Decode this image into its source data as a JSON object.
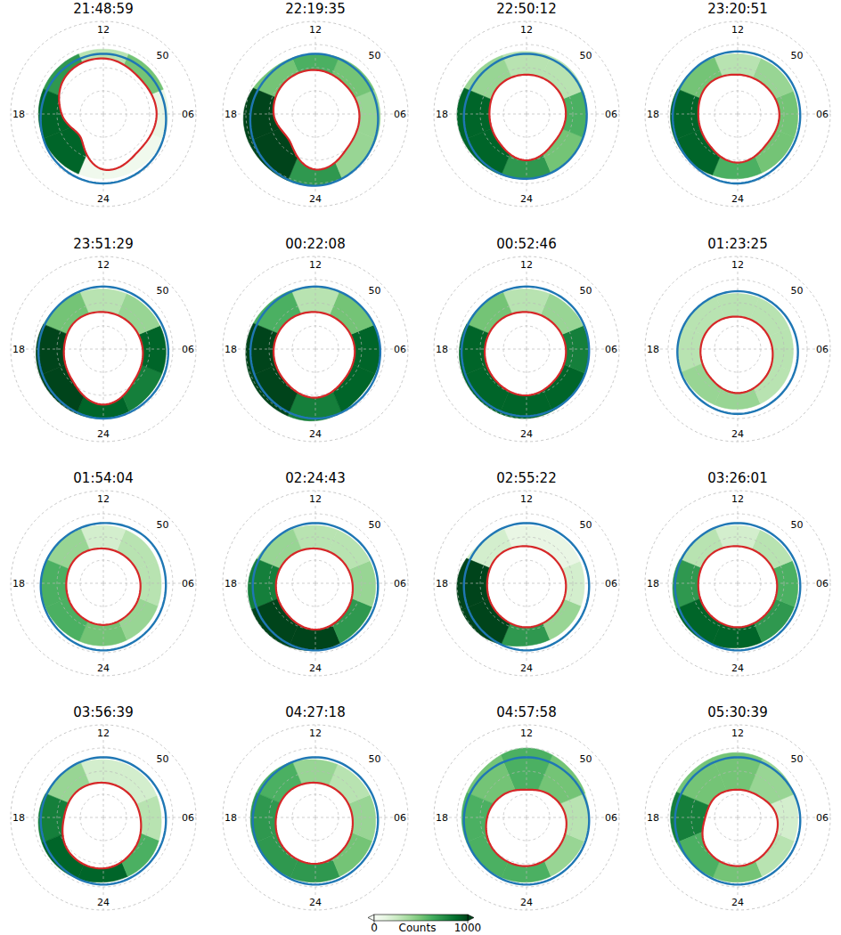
{
  "chart_data": {
    "type": "polar",
    "mlt": [
      0,
      3,
      6,
      9,
      12,
      15,
      18,
      21
    ],
    "rlim": [
      90,
      50
    ],
    "rticks": [
      50
    ],
    "grid_circles": [
      80,
      70,
      60
    ],
    "angle_ticks": [
      {
        "value": 12,
        "label": "12"
      },
      {
        "value": 18,
        "label": "18"
      },
      {
        "value": 6,
        "label": "06"
      },
      {
        "value": 24,
        "label": "24"
      }
    ],
    "colors": {
      "red_boundary": "#d62728",
      "blue_boundary": "#1f77b4"
    },
    "colorbar": {
      "range": [
        0,
        1000
      ],
      "ticks": [
        0,
        1000
      ],
      "label": "Counts"
    },
    "panels": [
      {
        "title": "21:48:59",
        "red_boundary": [
          66,
          68,
          67,
          68,
          66,
          67,
          72,
          76
        ],
        "blue_boundary": [
          60,
          61,
          63,
          64,
          64,
          64,
          63,
          61
        ],
        "oval_edge": [
          62,
          62,
          62,
          62,
          62,
          62,
          62,
          62
        ],
        "counts": [
          50,
          50,
          100,
          500,
          300,
          700,
          900,
          900
        ]
      },
      {
        "title": "22:19:35",
        "red_boundary": [
          66,
          70,
          71,
          72,
          71,
          71,
          72,
          74
        ],
        "blue_boundary": [
          59,
          61,
          63,
          64,
          64,
          64,
          62,
          60
        ],
        "oval_edge": [
          59,
          61,
          62,
          63,
          64,
          63,
          59,
          59
        ],
        "counts": [
          700,
          400,
          400,
          500,
          600,
          500,
          1000,
          1000
        ]
      },
      {
        "title": "22:50:12",
        "red_boundary": [
          70,
          73,
          73,
          73,
          73,
          73,
          74,
          73
        ],
        "blue_boundary": [
          62,
          63,
          64,
          64,
          64,
          64,
          63,
          62
        ],
        "oval_edge": [
          62,
          63,
          64,
          63,
          63,
          62,
          60,
          61
        ],
        "counts": [
          700,
          500,
          600,
          300,
          300,
          400,
          900,
          900
        ]
      },
      {
        "title": "23:20:51",
        "red_boundary": [
          69,
          72,
          72,
          73,
          73,
          72,
          73,
          72
        ],
        "blue_boundary": [
          60,
          62,
          63,
          63,
          63,
          63,
          62,
          61
        ],
        "oval_edge": [
          62,
          63,
          64,
          64,
          64,
          63,
          61,
          61
        ],
        "counts": [
          600,
          500,
          500,
          400,
          300,
          500,
          900,
          900
        ]
      },
      {
        "title": "23:51:29",
        "red_boundary": [
          66,
          71,
          73,
          74,
          74,
          73,
          73,
          71
        ],
        "blue_boundary": [
          60,
          61,
          62,
          63,
          63,
          63,
          62,
          61
        ],
        "oval_edge": [
          60,
          62,
          63,
          64,
          64,
          63,
          61,
          60
        ],
        "counts": [
          900,
          800,
          900,
          400,
          300,
          500,
          1000,
          1000
        ]
      },
      {
        "title": "00:22:08",
        "red_boundary": [
          69,
          72,
          73,
          74,
          74,
          73,
          72,
          71
        ],
        "blue_boundary": [
          60,
          61,
          62,
          63,
          63,
          63,
          62,
          61
        ],
        "oval_edge": [
          59,
          62,
          62,
          63,
          63,
          62,
          60,
          59
        ],
        "counts": [
          800,
          900,
          900,
          500,
          300,
          600,
          1000,
          1000
        ]
      },
      {
        "title": "00:52:46",
        "red_boundary": [
          70,
          72,
          73,
          74,
          74,
          73,
          72,
          71
        ],
        "blue_boundary": [
          61,
          62,
          63,
          63,
          63,
          63,
          62,
          61
        ],
        "oval_edge": [
          60,
          62,
          63,
          64,
          64,
          63,
          61,
          60
        ],
        "counts": [
          900,
          900,
          800,
          400,
          300,
          500,
          900,
          900
        ]
      },
      {
        "title": "01:23:25",
        "red_boundary": [
          71,
          73,
          75,
          76,
          76,
          75,
          74,
          73
        ],
        "blue_boundary": [
          62,
          63,
          64,
          65,
          65,
          65,
          64,
          63
        ],
        "oval_edge": [
          64,
          65,
          66,
          66,
          66,
          65,
          64,
          64
        ],
        "counts": [
          400,
          300,
          300,
          300,
          300,
          300,
          300,
          400
        ]
      },
      {
        "title": "01:54:04",
        "red_boundary": [
          72,
          73,
          74,
          75,
          75,
          74,
          74,
          73
        ],
        "blue_boundary": [
          61,
          62,
          63,
          63,
          64,
          64,
          63,
          62
        ],
        "oval_edge": [
          63,
          64,
          65,
          65,
          65,
          64,
          63,
          63
        ],
        "counts": [
          500,
          400,
          300,
          300,
          200,
          400,
          600,
          600
        ]
      },
      {
        "title": "02:24:43",
        "red_boundary": [
          70,
          72,
          74,
          75,
          75,
          74,
          73,
          72
        ],
        "blue_boundary": [
          61,
          62,
          63,
          64,
          64,
          64,
          63,
          62
        ],
        "oval_edge": [
          61,
          63,
          64,
          65,
          65,
          64,
          61,
          60
        ],
        "counts": [
          1000,
          700,
          400,
          300,
          300,
          400,
          800,
          1000
        ]
      },
      {
        "title": "02:55:22",
        "red_boundary": [
          71,
          72,
          73,
          74,
          74,
          73,
          73,
          72
        ],
        "blue_boundary": [
          61,
          62,
          63,
          64,
          64,
          64,
          63,
          62
        ],
        "oval_edge": [
          63,
          64,
          65,
          65,
          65,
          64,
          60,
          60
        ],
        "counts": [
          700,
          400,
          200,
          100,
          100,
          200,
          1000,
          1000
        ]
      },
      {
        "title": "03:26:01",
        "red_boundary": [
          71,
          72,
          73,
          74,
          74,
          73,
          73,
          72
        ],
        "blue_boundary": [
          61,
          62,
          63,
          64,
          64,
          64,
          63,
          62
        ],
        "oval_edge": [
          62,
          63,
          64,
          65,
          65,
          64,
          62,
          61
        ],
        "counts": [
          900,
          700,
          600,
          300,
          200,
          300,
          700,
          900
        ]
      },
      {
        "title": "03:56:39",
        "red_boundary": [
          68,
          71,
          74,
          75,
          75,
          74,
          73,
          69
        ],
        "blue_boundary": [
          61,
          62,
          63,
          64,
          64,
          64,
          63,
          62
        ],
        "oval_edge": [
          62,
          63,
          65,
          65,
          65,
          64,
          62,
          61
        ],
        "counts": [
          900,
          600,
          300,
          200,
          200,
          400,
          800,
          900
        ]
      },
      {
        "title": "04:27:18",
        "red_boundary": [
          70,
          72,
          74,
          75,
          75,
          74,
          73,
          71
        ],
        "blue_boundary": [
          61,
          62,
          63,
          64,
          64,
          64,
          63,
          62
        ],
        "oval_edge": [
          62,
          63,
          64,
          65,
          65,
          63,
          62,
          62
        ],
        "counts": [
          700,
          500,
          400,
          300,
          400,
          600,
          700,
          700
        ]
      },
      {
        "title": "04:57:58",
        "red_boundary": [
          69,
          71,
          73,
          76,
          78,
          76,
          73,
          70
        ],
        "blue_boundary": [
          61,
          62,
          63,
          64,
          64,
          64,
          63,
          62
        ],
        "oval_edge": [
          62,
          63,
          63,
          62,
          60,
          62,
          62,
          62
        ],
        "counts": [
          600,
          400,
          300,
          500,
          600,
          500,
          600,
          600
        ]
      },
      {
        "title": "05:30:39",
        "red_boundary": [
          69,
          71,
          73,
          77,
          78,
          77,
          76,
          71
        ],
        "blue_boundary": [
          61,
          62,
          63,
          64,
          64,
          64,
          63,
          62
        ],
        "oval_edge": [
          62,
          63,
          64,
          63,
          62,
          62,
          61,
          62
        ],
        "counts": [
          500,
          300,
          200,
          400,
          500,
          500,
          800,
          600
        ]
      }
    ]
  }
}
